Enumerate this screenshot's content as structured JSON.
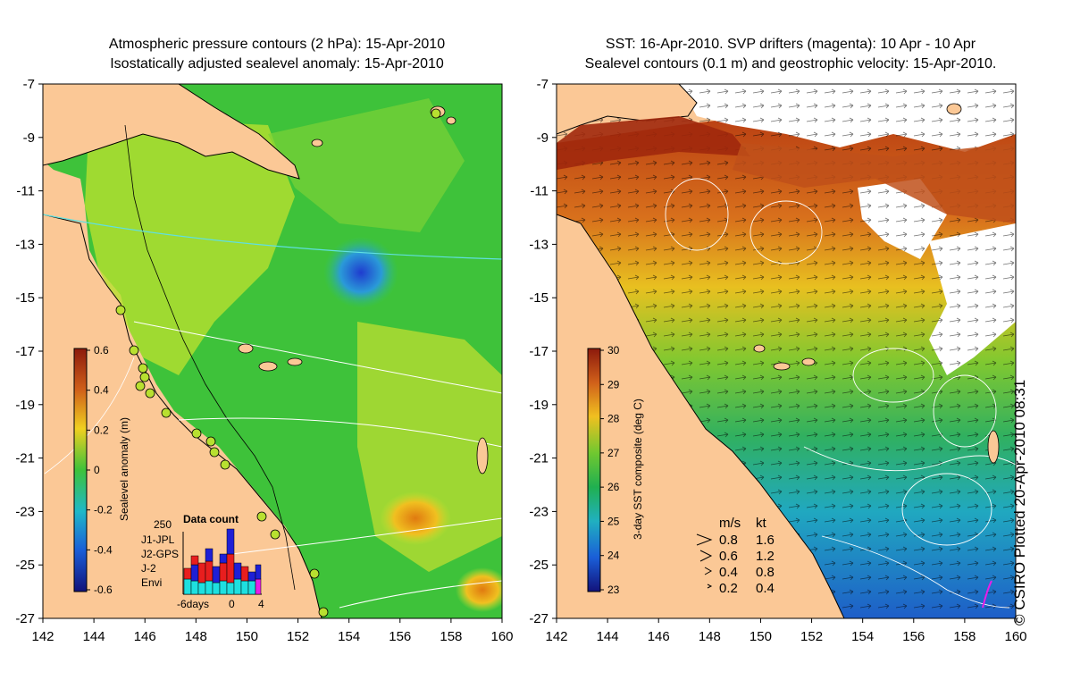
{
  "left_panel": {
    "title_line1": "Atmospheric pressure contours (2 hPa): 15-Apr-2010",
    "title_line2": "Isostatically adjusted sealevel anomaly: 15-Apr-2010",
    "colorbar": {
      "label": "Sealevel anomaly (m)",
      "ticks": [
        "0.6",
        "0.4",
        "0.2",
        "0",
        "-0.2",
        "-0.4",
        "-0.6"
      ]
    },
    "data_count": {
      "title": "Data count",
      "max_label": "250",
      "legend": [
        {
          "name": "J1-JPL",
          "color": "#1f1fd6"
        },
        {
          "name": "J2-GPS",
          "color": "#e81ee8"
        },
        {
          "name": "J-2",
          "color": "#e81e1e"
        },
        {
          "name": "Envi",
          "color": "#1ee0e0"
        }
      ],
      "x_labels": [
        "-6days",
        "0",
        "4"
      ]
    }
  },
  "right_panel": {
    "title_line1": "SST: 16-Apr-2010. SVP drifters (magenta): 10 Apr - 10 Apr",
    "title_line2": "Sealevel contours (0.1 m) and geostrophic velocity: 15-Apr-2010.",
    "colorbar": {
      "label": "3-day SST composite (deg C)",
      "ticks": [
        "30",
        "29",
        "28",
        "27",
        "26",
        "25",
        "24",
        "23"
      ]
    },
    "velocity_key": {
      "header_ms": "m/s",
      "header_kt": "kt",
      "rows": [
        {
          "ms": "0.8",
          "kt": "1.6"
        },
        {
          "ms": "0.6",
          "kt": "1.2"
        },
        {
          "ms": "0.4",
          "kt": "0.8"
        },
        {
          "ms": "0.2",
          "kt": "0.4"
        }
      ]
    }
  },
  "axes": {
    "y_ticks": [
      "-7",
      "-9",
      "-11",
      "-13",
      "-15",
      "-17",
      "-19",
      "-21",
      "-23",
      "-25",
      "-27"
    ],
    "x_ticks": [
      "142",
      "144",
      "146",
      "148",
      "150",
      "152",
      "154",
      "156",
      "158",
      "160"
    ]
  },
  "copyright": "© CSIRO Plotted 20-Apr-2010 08:31",
  "colors": {
    "land": "#fbc896",
    "sealevel_high": "#8c1a0c",
    "sealevel_zero": "#3ec23a",
    "sealevel_low": "#12127a",
    "sst_warm": "#a0280c",
    "sst_cool": "#1e5ec8"
  }
}
